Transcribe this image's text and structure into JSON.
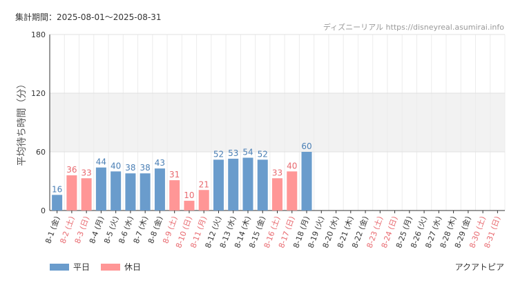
{
  "period_label": "集計期間：2025-08-01～2025-08-31",
  "credit": "ディズニーリアル https://disneyreal.asumirai.info",
  "area_name": "アクアトピア",
  "legend": [
    {
      "label": "平日",
      "color": "#6a9ccc"
    },
    {
      "label": "休日",
      "color": "#ff9696"
    }
  ],
  "chart_data": {
    "type": "bar",
    "ylabel": "平均待ち時間（分）",
    "ylim": [
      0,
      180
    ],
    "yticks": [
      0,
      60,
      120,
      180
    ],
    "grid": true,
    "legend_position": "bottom-left",
    "colors": {
      "weekday": "#6a9ccc",
      "holiday": "#ff9696",
      "holiday_label": "#e8696f",
      "weekday_label": "#4a7fb5"
    },
    "categories": [
      "8-1 (金)",
      "8-2 (土)",
      "8-3 (日)",
      "8-4 (月)",
      "8-5 (火)",
      "8-6 (水)",
      "8-7 (木)",
      "8-8 (金)",
      "8-9 (土)",
      "8-10 (日)",
      "8-11 (月)",
      "8-12 (火)",
      "8-13 (水)",
      "8-14 (木)",
      "8-15 (金)",
      "8-16 (土)",
      "8-17 (日)",
      "8-18 (月)",
      "8-19 (火)",
      "8-20 (水)",
      "8-21 (木)",
      "8-22 (金)",
      "8-23 (土)",
      "8-24 (日)",
      "8-25 (月)",
      "8-26 (火)",
      "8-27 (水)",
      "8-28 (木)",
      "8-29 (金)",
      "8-30 (土)",
      "8-31 (日)"
    ],
    "day_type": [
      "weekday",
      "holiday",
      "holiday",
      "weekday",
      "weekday",
      "weekday",
      "weekday",
      "weekday",
      "holiday",
      "holiday",
      "holiday",
      "weekday",
      "weekday",
      "weekday",
      "weekday",
      "holiday",
      "holiday",
      "weekday",
      "weekday",
      "weekday",
      "weekday",
      "weekday",
      "holiday",
      "holiday",
      "weekday",
      "weekday",
      "weekday",
      "weekday",
      "weekday",
      "holiday",
      "holiday"
    ],
    "values": [
      16,
      36,
      33,
      44,
      40,
      38,
      38,
      43,
      31,
      10,
      21,
      52,
      53,
      54,
      52,
      33,
      40,
      60,
      null,
      null,
      null,
      null,
      null,
      null,
      null,
      null,
      null,
      null,
      null,
      null,
      null
    ]
  }
}
